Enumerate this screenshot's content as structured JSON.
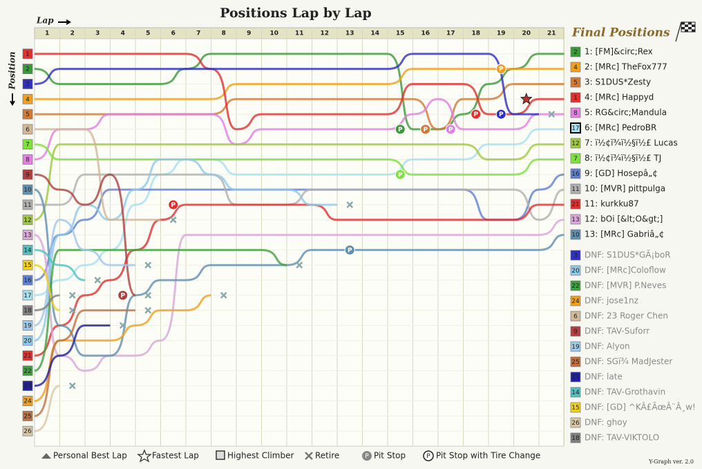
{
  "chart_data": {
    "type": "line",
    "title": "Positions Lap by Lap",
    "x_label": "Lap",
    "y_label": "Position",
    "legend_title": "Final Positions",
    "y_reversed": true,
    "categories": [
      null,
      1,
      2,
      3,
      4,
      5,
      6,
      7,
      8,
      9,
      10,
      11,
      12,
      13,
      14,
      15,
      16,
      17,
      18,
      19,
      20,
      21
    ],
    "ylim": [
      0,
      27
    ],
    "yticks": [
      1,
      2,
      3,
      4,
      5,
      6,
      7,
      8,
      9,
      10,
      11,
      12,
      13,
      14,
      15,
      16,
      17,
      18,
      19,
      20,
      21,
      22,
      23,
      24,
      25,
      26
    ],
    "series": [
      {
        "name": "1: [FM]&circ;Rex",
        "color": "#3a9a3a",
        "values": [
          2,
          3,
          3,
          3,
          3,
          3,
          2,
          1,
          1,
          1,
          1,
          1,
          1,
          1,
          1,
          6,
          6,
          5,
          3,
          2,
          1,
          1
        ],
        "pits": [
          15
        ]
      },
      {
        "name": "2: [MRc] TheFox777",
        "color": "#f0a020",
        "values": [
          4,
          4,
          4,
          4,
          4,
          4,
          4,
          4,
          3,
          3,
          3,
          3,
          3,
          3,
          3,
          2,
          2,
          2,
          2,
          2,
          2,
          2
        ],
        "pits": [
          19
        ]
      },
      {
        "name": "3: S1DUS*Zesty",
        "color": "#d07a3a",
        "values": [
          5,
          5,
          5,
          5,
          5,
          5,
          5,
          5,
          4,
          4,
          4,
          4,
          4,
          4,
          4,
          4,
          6,
          4,
          4,
          3,
          3,
          3
        ],
        "pits": [
          16
        ]
      },
      {
        "name": "4: [MRc] Happyd",
        "color": "#e03030",
        "values": [
          1,
          1,
          1,
          1,
          1,
          1,
          1,
          2,
          6,
          5,
          5,
          5,
          5,
          5,
          5,
          3,
          3,
          3,
          5,
          5,
          4,
          4
        ],
        "pits": [
          18
        ],
        "fastest_lap": 20
      },
      {
        "name": "5: RG&circ;Mandula",
        "color": "#e080e0",
        "values": [
          8,
          6,
          6,
          5,
          5,
          5,
          5,
          5,
          7,
          6,
          6,
          6,
          6,
          6,
          6,
          5,
          4,
          6,
          6,
          6,
          5,
          5
        ],
        "pits": [
          17
        ]
      },
      {
        "name": "6: [MRc] PedroBR",
        "color": "#a8e0f0",
        "values": [
          17,
          16,
          15,
          14,
          11,
          9,
          8,
          8,
          9,
          9,
          9,
          9,
          9,
          9,
          9,
          8,
          8,
          8,
          7,
          7,
          6,
          6
        ],
        "highest_climber": true
      },
      {
        "name": "7: ï½¢ï¾ï½§ï½£ Lucas",
        "color": "#a0c840",
        "values": [
          12,
          7,
          7,
          7,
          7,
          7,
          7,
          7,
          7,
          7,
          7,
          7,
          7,
          7,
          7,
          7,
          7,
          7,
          8,
          8,
          7,
          7
        ]
      },
      {
        "name": "8: ï½¢ï¾ï½§ï½£ TJ",
        "color": "#80e040",
        "values": [
          7,
          8,
          8,
          8,
          8,
          8,
          8,
          8,
          8,
          8,
          8,
          8,
          8,
          8,
          8,
          9,
          9,
          9,
          9,
          9,
          8,
          8
        ],
        "pits": [
          15
        ]
      },
      {
        "name": "9: [GD] Hosepâ„¢",
        "color": "#6080d0",
        "values": [
          16,
          13,
          12,
          10,
          10,
          10,
          10,
          10,
          10,
          10,
          10,
          10,
          10,
          10,
          10,
          10,
          10,
          10,
          12,
          12,
          10,
          9
        ]
      },
      {
        "name": "10: [MVR] pittpulga",
        "color": "#b0b0b0",
        "values": [
          11,
          11,
          9,
          9,
          9,
          9,
          9,
          9,
          11,
          11,
          11,
          10,
          10,
          10,
          10,
          10,
          10,
          10,
          10,
          10,
          12,
          10
        ]
      },
      {
        "name": "11: kurkku87",
        "color": "#e03030",
        "values": [
          21,
          19,
          17,
          16,
          14,
          12,
          11,
          11,
          11,
          11,
          11,
          11,
          12,
          12,
          12,
          12,
          12,
          12,
          12,
          12,
          11,
          11
        ],
        "pits": [
          6
        ]
      },
      {
        "name": "12: bOi [&lt;O&gt;]",
        "color": "#d8a8d8",
        "values": [
          13,
          21,
          22,
          21,
          21,
          20,
          13,
          13,
          13,
          13,
          13,
          13,
          13,
          13,
          13,
          13,
          13,
          13,
          13,
          13,
          13,
          12
        ]
      },
      {
        "name": "13: [MRc] Gabriâ„¢",
        "color": "#6090b0",
        "values": [
          10,
          19,
          21,
          21,
          17,
          16,
          16,
          15,
          15,
          15,
          15,
          14,
          14,
          14,
          14,
          14,
          14,
          14,
          14,
          14,
          14,
          13
        ],
        "pits": [
          13
        ]
      },
      {
        "name": "DNF: S1DUS*GÃ¡boR",
        "color": "#3030c0",
        "values": [
          3,
          2,
          2,
          2,
          2,
          2,
          2,
          2,
          2,
          2,
          2,
          2,
          2,
          2,
          2,
          1,
          1,
          1,
          1,
          5,
          5,
          null
        ],
        "pits": [
          19
        ]
      },
      {
        "name": "DNF: [MRc]Coloflow",
        "color": "#90c8e8",
        "values": [
          20,
          13,
          11,
          12,
          10,
          8,
          8,
          9,
          10,
          10,
          10,
          11,
          11,
          null,
          null,
          null,
          null,
          null,
          null,
          null,
          null,
          null
        ]
      },
      {
        "name": "DNF: [MVR] P.Neves",
        "color": "#40a040",
        "values": [
          22,
          14,
          14,
          14,
          14,
          14,
          14,
          14,
          14,
          14,
          15,
          null,
          null,
          null,
          null,
          null,
          null,
          null,
          null,
          null,
          null,
          null
        ]
      },
      {
        "name": "DNF: jose1nz",
        "color": "#f0a020",
        "values": [
          24,
          20,
          20,
          20,
          19,
          18,
          18,
          17,
          null,
          null,
          null,
          null,
          null,
          null,
          null,
          null,
          null,
          null,
          null,
          null,
          null,
          null
        ]
      },
      {
        "name": "DNF: 23 Roger Chen",
        "color": "#d0b898",
        "values": [
          6,
          6,
          6,
          12,
          12,
          12,
          null,
          null,
          null,
          null,
          null,
          null,
          null,
          null,
          null,
          null,
          null,
          null,
          null,
          null,
          null,
          null
        ]
      },
      {
        "name": "DNF: TAV-Suforr",
        "color": "#b04040",
        "values": [
          9,
          10,
          11,
          9,
          17,
          null,
          null,
          null,
          null,
          null,
          null,
          null,
          null,
          null,
          null,
          null,
          null,
          null,
          null,
          null,
          null,
          null
        ],
        "pits": [
          4
        ]
      },
      {
        "name": "DNF: Alyon",
        "color": "#a0c8e8",
        "values": [
          19,
          12,
          14,
          15,
          15,
          null,
          null,
          null,
          null,
          null,
          null,
          null,
          null,
          null,
          null,
          null,
          null,
          null,
          null,
          null,
          null,
          null
        ]
      },
      {
        "name": "DNF: SGï¾ MadJester",
        "color": "#c07040",
        "values": [
          25,
          20,
          18,
          18,
          18,
          null,
          null,
          null,
          null,
          null,
          null,
          null,
          null,
          null,
          null,
          null,
          null,
          null,
          null,
          null,
          null,
          null
        ]
      },
      {
        "name": "DNF: late",
        "color": "#2020a0",
        "values": [
          23,
          21,
          19,
          19,
          null,
          null,
          null,
          null,
          null,
          null,
          null,
          null,
          null,
          null,
          null,
          null,
          null,
          null,
          null,
          null,
          null,
          null
        ]
      },
      {
        "name": "DNF: TAV-Grothavin",
        "color": "#50c0c0",
        "values": [
          14,
          15,
          16,
          null,
          null,
          null,
          null,
          null,
          null,
          null,
          null,
          null,
          null,
          null,
          null,
          null,
          null,
          null,
          null,
          null,
          null,
          null
        ]
      },
      {
        "name": "DNF: [GD] ^KÂ£ÃœÂ¨Â¸w!",
        "color": "#f0d020",
        "values": [
          15,
          18,
          null,
          null,
          null,
          null,
          null,
          null,
          null,
          null,
          null,
          null,
          null,
          null,
          null,
          null,
          null,
          null,
          null,
          null,
          null,
          null
        ]
      },
      {
        "name": "DNF: ghoy",
        "color": "#d8c8a8",
        "values": [
          26,
          23,
          null,
          null,
          null,
          null,
          null,
          null,
          null,
          null,
          null,
          null,
          null,
          null,
          null,
          null,
          null,
          null,
          null,
          null,
          null,
          null
        ]
      },
      {
        "name": "DNF: TAV-VIKTOLO",
        "color": "#808080",
        "values": [
          18,
          17,
          null,
          null,
          null,
          null,
          null,
          null,
          null,
          null,
          null,
          null,
          null,
          null,
          null,
          null,
          null,
          null,
          null,
          null,
          null,
          null
        ]
      }
    ],
    "key": [
      "Personal Best Lap",
      "Fastest Lap",
      "Highest Climber",
      "Retire",
      "Pit Stop",
      "Pit Stop with Tire Change"
    ],
    "footer": "Y-Graph ver. 2.0"
  }
}
